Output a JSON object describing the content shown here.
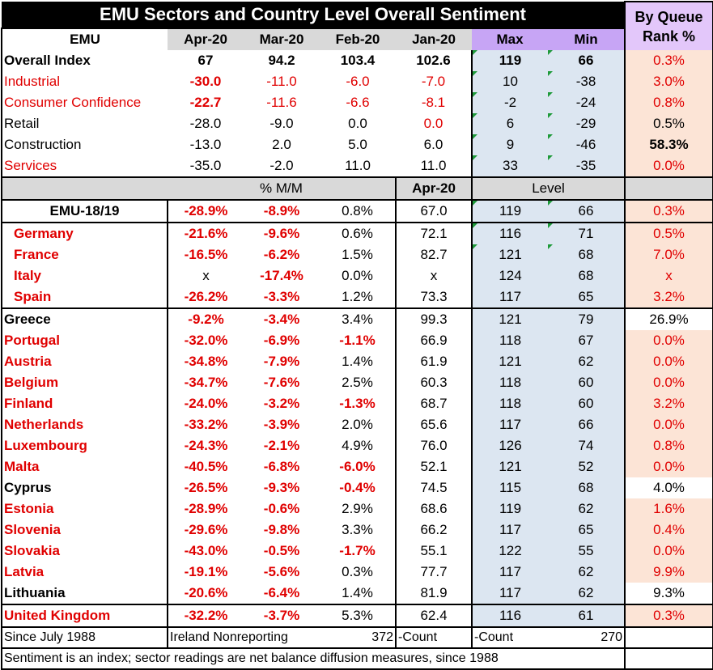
{
  "title": "EMU Sectors and Country Level Overall Sentiment",
  "queue_header": [
    "By Queue",
    "Rank %"
  ],
  "columns": {
    "label": "EMU",
    "months": [
      "Apr-20",
      "Mar-20",
      "Feb-20",
      "Jan-20"
    ],
    "max": "Max",
    "min": "Min"
  },
  "sector_rows": [
    {
      "label": "Overall Index",
      "vals": [
        "67",
        "94.2",
        "103.4",
        "102.6"
      ],
      "max": "119",
      "min": "66",
      "rank": "0.3%"
    },
    {
      "label": "Industrial",
      "vals": [
        "-30.0",
        "-11.0",
        "-6.0",
        "-7.0"
      ],
      "max": "10",
      "min": "-38",
      "rank": "3.0%"
    },
    {
      "label": "Consumer Confidence",
      "vals": [
        "-22.7",
        "-11.6",
        "-6.6",
        "-8.1"
      ],
      "max": "-2",
      "min": "-24",
      "rank": "0.8%"
    },
    {
      "label": "Retail",
      "vals": [
        "-28.0",
        "-9.0",
        "0.0",
        "0.0"
      ],
      "max": "6",
      "min": "-29",
      "rank": "0.5%"
    },
    {
      "label": "Construction",
      "vals": [
        "-13.0",
        "2.0",
        "5.0",
        "6.0"
      ],
      "max": "9",
      "min": "-46",
      "rank": "58.3%"
    },
    {
      "label": "Services",
      "vals": [
        "-35.0",
        "-2.0",
        "11.0",
        "11.0"
      ],
      "max": "33",
      "min": "-35",
      "rank": "0.0%"
    }
  ],
  "sub_header": {
    "mm": "% M/M",
    "apr": "Apr-20",
    "level": "Level"
  },
  "emu_row": {
    "label": "EMU-18/19",
    "vals": [
      "-28.9%",
      "-8.9%",
      "0.8%",
      "67.0"
    ],
    "max": "119",
    "min": "66",
    "rank": "0.3%"
  },
  "big4": [
    {
      "label": "Germany",
      "vals": [
        "-21.6%",
        "-9.6%",
        "0.6%",
        "72.1"
      ],
      "max": "116",
      "min": "71",
      "rank": "0.5%"
    },
    {
      "label": "France",
      "vals": [
        "-16.5%",
        "-6.2%",
        "1.5%",
        "82.7"
      ],
      "max": "121",
      "min": "68",
      "rank": "7.0%"
    },
    {
      "label": "Italy",
      "vals": [
        "x",
        "-17.4%",
        "0.0%",
        "x"
      ],
      "max": "124",
      "min": "68",
      "rank": "x"
    },
    {
      "label": "Spain",
      "vals": [
        "-26.2%",
        "-3.3%",
        "1.2%",
        "73.3"
      ],
      "max": "117",
      "min": "65",
      "rank": "3.2%"
    }
  ],
  "others": [
    {
      "label": "Greece",
      "vals": [
        "-9.2%",
        "-3.4%",
        "3.4%",
        "99.3"
      ],
      "max": "121",
      "min": "79",
      "rank": "26.9%"
    },
    {
      "label": "Portugal",
      "vals": [
        "-32.0%",
        "-6.9%",
        "-1.1%",
        "66.9"
      ],
      "max": "118",
      "min": "67",
      "rank": "0.0%"
    },
    {
      "label": "Austria",
      "vals": [
        "-34.8%",
        "-7.9%",
        "1.4%",
        "61.9"
      ],
      "max": "121",
      "min": "62",
      "rank": "0.0%"
    },
    {
      "label": "Belgium",
      "vals": [
        "-34.7%",
        "-7.6%",
        "2.5%",
        "60.3"
      ],
      "max": "118",
      "min": "60",
      "rank": "0.0%"
    },
    {
      "label": "Finland",
      "vals": [
        "-24.0%",
        "-3.2%",
        "-1.3%",
        "68.7"
      ],
      "max": "118",
      "min": "60",
      "rank": "3.2%"
    },
    {
      "label": "Netherlands",
      "vals": [
        "-33.2%",
        "-3.9%",
        "2.0%",
        "65.6"
      ],
      "max": "117",
      "min": "66",
      "rank": "0.0%"
    },
    {
      "label": "Luxembourg",
      "vals": [
        "-24.3%",
        "-2.1%",
        "4.9%",
        "76.0"
      ],
      "max": "126",
      "min": "74",
      "rank": "0.8%"
    },
    {
      "label": "Malta",
      "vals": [
        "-40.5%",
        "-6.8%",
        "-6.0%",
        "52.1"
      ],
      "max": "121",
      "min": "52",
      "rank": "0.0%"
    },
    {
      "label": "Cyprus",
      "vals": [
        "-26.5%",
        "-9.3%",
        "-0.4%",
        "74.5"
      ],
      "max": "115",
      "min": "68",
      "rank": "4.0%"
    },
    {
      "label": "Estonia",
      "vals": [
        "-28.9%",
        "-0.6%",
        "2.9%",
        "68.6"
      ],
      "max": "119",
      "min": "62",
      "rank": "1.6%"
    },
    {
      "label": "Slovenia",
      "vals": [
        "-29.6%",
        "-9.8%",
        "3.3%",
        "66.2"
      ],
      "max": "117",
      "min": "65",
      "rank": "0.4%"
    },
    {
      "label": "Slovakia",
      "vals": [
        "-43.0%",
        "-0.5%",
        "-1.7%",
        "55.1"
      ],
      "max": "122",
      "min": "55",
      "rank": "0.0%"
    },
    {
      "label": "Latvia",
      "vals": [
        "-19.1%",
        "-5.6%",
        "0.3%",
        "77.7"
      ],
      "max": "117",
      "min": "62",
      "rank": "9.9%"
    },
    {
      "label": "Lithuania",
      "vals": [
        "-20.6%",
        "-6.4%",
        "1.4%",
        "81.9"
      ],
      "max": "117",
      "min": "62",
      "rank": "9.3%"
    }
  ],
  "uk_row": {
    "label": "United Kingdom",
    "vals": [
      "-32.2%",
      "-3.7%",
      "5.3%",
      "62.4"
    ],
    "max": "116",
    "min": "61",
    "rank": "0.3%"
  },
  "footer": {
    "since": "Since July 1988",
    "ireland": "Ireland Nonreporting",
    "count1": "372",
    "count1_label": "-Count",
    "count2_label": "-Count",
    "count2": "270",
    "note": "Sentiment is an index; sector readings are net balance diffusion measures, since 1988"
  },
  "colors": {
    "red": "#e00000",
    "lavender": "#c7a5f5",
    "light_blue": "#dce6f1",
    "peach": "#fce4d6",
    "grey": "#d9d9d9"
  }
}
